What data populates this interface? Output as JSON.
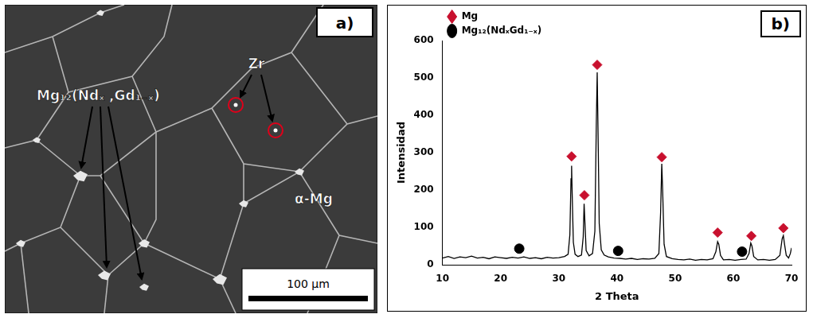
{
  "micrograph": {
    "panel_label": "a)",
    "labels": {
      "intermetallic": "Mg₁₂(Ndₓ ,Gd₁₋ₓ)",
      "zr": "Zr",
      "matrix": "α-Mg"
    },
    "scale_bar": "100 µm"
  },
  "chart_data": {
    "type": "line",
    "panel_label": "b)",
    "xlabel": "2 Theta",
    "ylabel": "Intensidad",
    "xlim": [
      10,
      70
    ],
    "ylim": [
      0,
      600
    ],
    "xticks": [
      10,
      20,
      30,
      40,
      50,
      60,
      70
    ],
    "yticks": [
      0,
      100,
      200,
      300,
      400,
      500,
      600
    ],
    "grid": false,
    "legend": "top-left",
    "series": [
      {
        "type": "line",
        "color": "#000000",
        "marker": "none",
        "x": [
          10,
          11,
          12,
          13,
          14,
          15,
          16,
          17,
          18,
          19,
          20,
          21,
          22,
          23,
          24,
          25,
          26,
          27,
          28,
          29,
          30,
          31,
          31.6,
          31.9,
          32.1,
          32.2,
          32.3,
          32.5,
          32.8,
          33.3,
          33.9,
          34.2,
          34.35,
          34.5,
          34.7,
          35.2,
          35.8,
          36.2,
          36.45,
          36.6,
          36.75,
          36.95,
          37.3,
          37.8,
          38.5,
          39.5,
          40.5,
          41.5,
          42.5,
          43.5,
          44.5,
          45.5,
          46.5,
          47.2,
          47.5,
          47.7,
          47.85,
          48.1,
          48.5,
          49.5,
          50.5,
          51.5,
          52.5,
          53.5,
          54.5,
          55.5,
          56.5,
          57,
          57.3,
          57.5,
          57.8,
          58.3,
          59.3,
          60.3,
          61.3,
          62.2,
          62.7,
          63,
          63.2,
          63.5,
          64.2,
          65.2,
          66.2,
          67.2,
          68,
          68.4,
          68.6,
          68.8,
          69.1,
          69.5,
          69.8,
          70
        ],
        "values": [
          18,
          22,
          17,
          21,
          19,
          23,
          18,
          20,
          16,
          21,
          19,
          17,
          20,
          18,
          21,
          17,
          19,
          16,
          20,
          18,
          19,
          22,
          28,
          80,
          230,
          265,
          190,
          60,
          28,
          22,
          26,
          75,
          163,
          110,
          38,
          24,
          30,
          90,
          380,
          515,
          350,
          110,
          40,
          26,
          21,
          18,
          17,
          15,
          17,
          14,
          16,
          15,
          17,
          30,
          140,
          270,
          200,
          55,
          22,
          16,
          14,
          13,
          15,
          12,
          14,
          13,
          16,
          35,
          62,
          55,
          25,
          13,
          14,
          12,
          14,
          15,
          30,
          58,
          50,
          22,
          13,
          14,
          12,
          14,
          25,
          70,
          78,
          55,
          25,
          18,
          30,
          45
        ]
      },
      {
        "name": "Mg",
        "type": "scatter",
        "marker": "diamond",
        "color": "#c8102e",
        "x": [
          32.2,
          34.4,
          36.6,
          47.7,
          57.3,
          63.1,
          68.6
        ],
        "values": [
          290,
          186,
          535,
          288,
          86,
          77,
          98
        ]
      },
      {
        "name": "Mg₁₂(NdₓGd₁₋ₓ)",
        "type": "scatter",
        "marker": "circle",
        "color": "#000000",
        "x": [
          23.2,
          40.2,
          61.5
        ],
        "values": [
          43,
          37,
          35
        ]
      }
    ]
  }
}
